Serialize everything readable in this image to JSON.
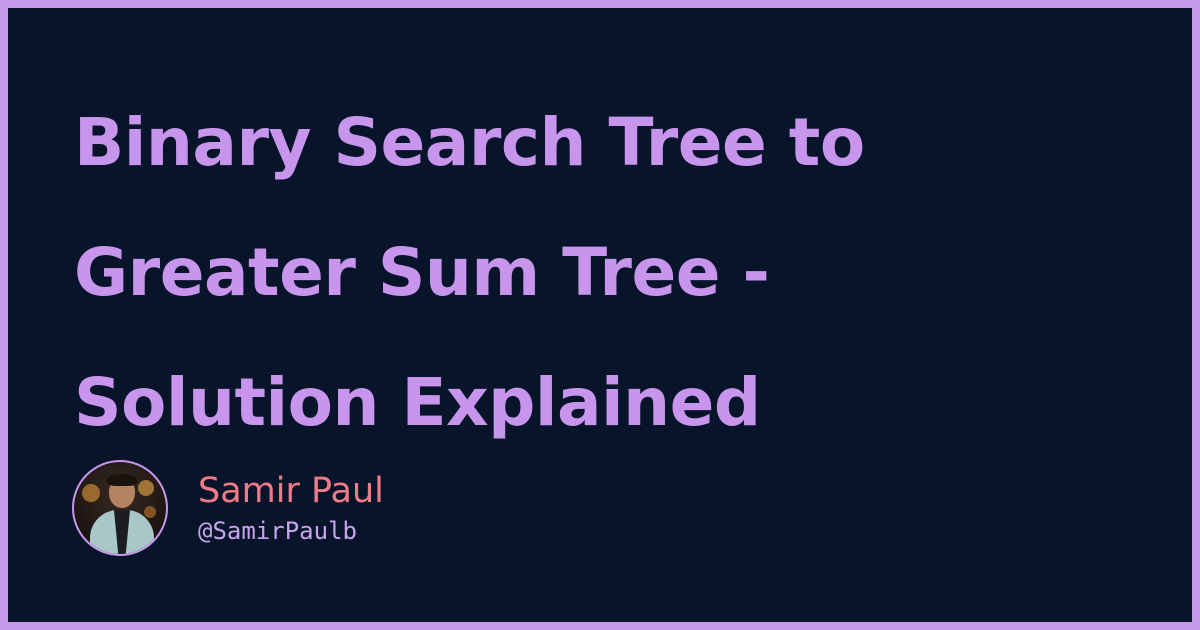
{
  "post": {
    "title": "Binary Search Tree to\nGreater Sum Tree -\nSolution Explained"
  },
  "author": {
    "name": "Samir Paul",
    "handle": "@SamirPaulb"
  },
  "colors": {
    "border": "#c49bea",
    "background": "#07142a",
    "title": "#c796ec",
    "name": "#ef7b87",
    "handle": "#c8a4ec"
  }
}
